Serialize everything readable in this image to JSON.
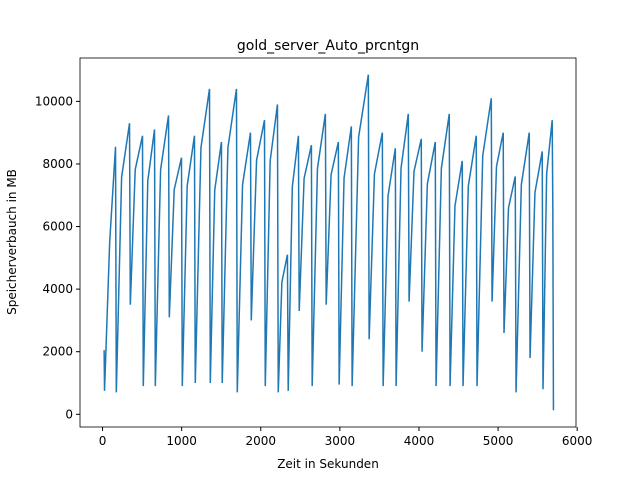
{
  "chart_data": {
    "type": "line",
    "title": "gold_server_Auto_prcntgn",
    "x_label": "Zeit in Sekunden",
    "y_label": "Speicherverbauch in MB",
    "series": [
      {
        "name": "gold_server_Auto_prcntgn",
        "color": "#1f77b4",
        "x": [
          20,
          25,
          90,
          164,
          174,
          241,
          341,
          351,
          413,
          505,
          515,
          572,
          657,
          667,
          734,
          834,
          844,
          906,
          998,
          1008,
          1070,
          1162,
          1172,
          1244,
          1352,
          1362,
          1418,
          1503,
          1513,
          1585,
          1693,
          1703,
          1770,
          1870,
          1880,
          1947,
          2047,
          2057,
          2119,
          2211,
          2221,
          2267,
          2337,
          2347,
          2399,
          2476,
          2486,
          2548,
          2640,
          2650,
          2717,
          2817,
          2827,
          2889,
          2981,
          2991,
          3053,
          3145,
          3155,
          3237,
          3360,
          3370,
          3437,
          3537,
          3547,
          3609,
          3701,
          3711,
          3773,
          3865,
          3875,
          3937,
          4029,
          4039,
          4106,
          4206,
          4216,
          4283,
          4383,
          4393,
          4455,
          4547,
          4557,
          4624,
          4724,
          4734,
          4806,
          4914,
          4924,
          4980,
          5065,
          5075,
          5132,
          5217,
          5227,
          5294,
          5394,
          5404,
          5466,
          5558,
          5568,
          5614,
          5684,
          5692,
          5700
        ],
        "values": [
          2050,
          750,
          5500,
          8550,
          700,
          7580,
          9300,
          3500,
          7820,
          8900,
          900,
          7460,
          9100,
          900,
          7820,
          9550,
          3100,
          7180,
          8200,
          900,
          7300,
          8900,
          1000,
          8520,
          10400,
          1000,
          7160,
          8700,
          1000,
          8520,
          10400,
          700,
          7340,
          9000,
          3000,
          8120,
          9400,
          900,
          8100,
          9900,
          700,
          4220,
          5100,
          750,
          7270,
          8900,
          3300,
          7540,
          8600,
          900,
          7860,
          9600,
          3500,
          7660,
          8700,
          950,
          7550,
          9200,
          900,
          8860,
          10850,
          2400,
          7680,
          9000,
          900,
          6980,
          8500,
          900,
          7860,
          9600,
          3600,
          7760,
          8800,
          2000,
          7360,
          8700,
          900,
          7860,
          9600,
          900,
          6660,
          8100,
          900,
          7300,
          8900,
          900,
          8260,
          10100,
          3600,
          7920,
          9000,
          2600,
          6600,
          7600,
          700,
          7340,
          9000,
          1800,
          7080,
          8400,
          800,
          7680,
          9400,
          6600,
          130
        ]
      }
    ],
    "xlim": [
      -285,
      5985
    ],
    "ylim": [
      -406,
      11386
    ],
    "xticks": [
      0,
      1000,
      2000,
      3000,
      4000,
      5000,
      6000
    ],
    "yticks": [
      0,
      2000,
      4000,
      6000,
      8000,
      10000
    ]
  }
}
